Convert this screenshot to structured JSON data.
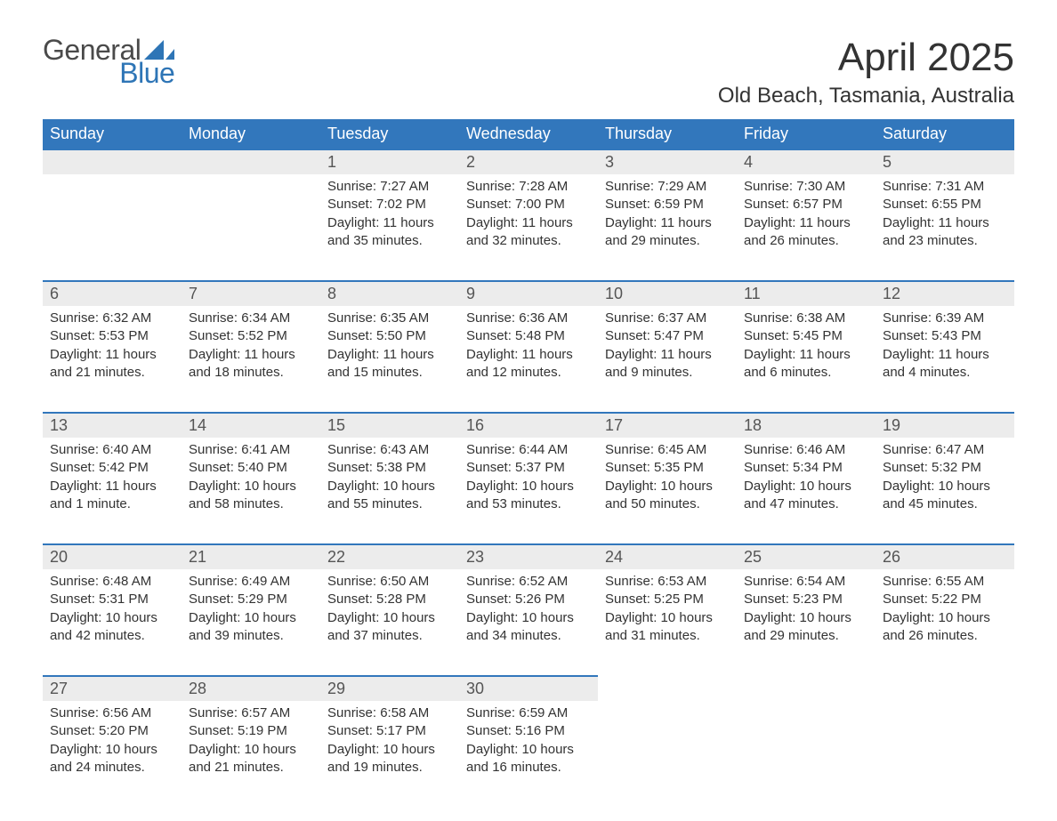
{
  "logo": {
    "word1": "General",
    "word2": "Blue",
    "sail_color": "#2e75b6",
    "text1_color": "#4a4a4a",
    "text2_color": "#2e75b6"
  },
  "title": "April 2025",
  "location": "Old Beach, Tasmania, Australia",
  "colors": {
    "header_bg": "#3277bc",
    "header_text": "#ffffff",
    "daynum_bg": "#ececec",
    "row_border": "#3277bc",
    "body_text": "#333333",
    "page_bg": "#ffffff"
  },
  "fonts": {
    "title_size": 44,
    "location_size": 24,
    "dayheader_size": 18,
    "daynum_size": 18,
    "body_size": 15
  },
  "day_headers": [
    "Sunday",
    "Monday",
    "Tuesday",
    "Wednesday",
    "Thursday",
    "Friday",
    "Saturday"
  ],
  "weeks": [
    [
      null,
      null,
      {
        "n": "1",
        "sunrise": "7:27 AM",
        "sunset": "7:02 PM",
        "daylight": "11 hours and 35 minutes."
      },
      {
        "n": "2",
        "sunrise": "7:28 AM",
        "sunset": "7:00 PM",
        "daylight": "11 hours and 32 minutes."
      },
      {
        "n": "3",
        "sunrise": "7:29 AM",
        "sunset": "6:59 PM",
        "daylight": "11 hours and 29 minutes."
      },
      {
        "n": "4",
        "sunrise": "7:30 AM",
        "sunset": "6:57 PM",
        "daylight": "11 hours and 26 minutes."
      },
      {
        "n": "5",
        "sunrise": "7:31 AM",
        "sunset": "6:55 PM",
        "daylight": "11 hours and 23 minutes."
      }
    ],
    [
      {
        "n": "6",
        "sunrise": "6:32 AM",
        "sunset": "5:53 PM",
        "daylight": "11 hours and 21 minutes."
      },
      {
        "n": "7",
        "sunrise": "6:34 AM",
        "sunset": "5:52 PM",
        "daylight": "11 hours and 18 minutes."
      },
      {
        "n": "8",
        "sunrise": "6:35 AM",
        "sunset": "5:50 PM",
        "daylight": "11 hours and 15 minutes."
      },
      {
        "n": "9",
        "sunrise": "6:36 AM",
        "sunset": "5:48 PM",
        "daylight": "11 hours and 12 minutes."
      },
      {
        "n": "10",
        "sunrise": "6:37 AM",
        "sunset": "5:47 PM",
        "daylight": "11 hours and 9 minutes."
      },
      {
        "n": "11",
        "sunrise": "6:38 AM",
        "sunset": "5:45 PM",
        "daylight": "11 hours and 6 minutes."
      },
      {
        "n": "12",
        "sunrise": "6:39 AM",
        "sunset": "5:43 PM",
        "daylight": "11 hours and 4 minutes."
      }
    ],
    [
      {
        "n": "13",
        "sunrise": "6:40 AM",
        "sunset": "5:42 PM",
        "daylight": "11 hours and 1 minute."
      },
      {
        "n": "14",
        "sunrise": "6:41 AM",
        "sunset": "5:40 PM",
        "daylight": "10 hours and 58 minutes."
      },
      {
        "n": "15",
        "sunrise": "6:43 AM",
        "sunset": "5:38 PM",
        "daylight": "10 hours and 55 minutes."
      },
      {
        "n": "16",
        "sunrise": "6:44 AM",
        "sunset": "5:37 PM",
        "daylight": "10 hours and 53 minutes."
      },
      {
        "n": "17",
        "sunrise": "6:45 AM",
        "sunset": "5:35 PM",
        "daylight": "10 hours and 50 minutes."
      },
      {
        "n": "18",
        "sunrise": "6:46 AM",
        "sunset": "5:34 PM",
        "daylight": "10 hours and 47 minutes."
      },
      {
        "n": "19",
        "sunrise": "6:47 AM",
        "sunset": "5:32 PM",
        "daylight": "10 hours and 45 minutes."
      }
    ],
    [
      {
        "n": "20",
        "sunrise": "6:48 AM",
        "sunset": "5:31 PM",
        "daylight": "10 hours and 42 minutes."
      },
      {
        "n": "21",
        "sunrise": "6:49 AM",
        "sunset": "5:29 PM",
        "daylight": "10 hours and 39 minutes."
      },
      {
        "n": "22",
        "sunrise": "6:50 AM",
        "sunset": "5:28 PM",
        "daylight": "10 hours and 37 minutes."
      },
      {
        "n": "23",
        "sunrise": "6:52 AM",
        "sunset": "5:26 PM",
        "daylight": "10 hours and 34 minutes."
      },
      {
        "n": "24",
        "sunrise": "6:53 AM",
        "sunset": "5:25 PM",
        "daylight": "10 hours and 31 minutes."
      },
      {
        "n": "25",
        "sunrise": "6:54 AM",
        "sunset": "5:23 PM",
        "daylight": "10 hours and 29 minutes."
      },
      {
        "n": "26",
        "sunrise": "6:55 AM",
        "sunset": "5:22 PM",
        "daylight": "10 hours and 26 minutes."
      }
    ],
    [
      {
        "n": "27",
        "sunrise": "6:56 AM",
        "sunset": "5:20 PM",
        "daylight": "10 hours and 24 minutes."
      },
      {
        "n": "28",
        "sunrise": "6:57 AM",
        "sunset": "5:19 PM",
        "daylight": "10 hours and 21 minutes."
      },
      {
        "n": "29",
        "sunrise": "6:58 AM",
        "sunset": "5:17 PM",
        "daylight": "10 hours and 19 minutes."
      },
      {
        "n": "30",
        "sunrise": "6:59 AM",
        "sunset": "5:16 PM",
        "daylight": "10 hours and 16 minutes."
      },
      null,
      null,
      null
    ]
  ],
  "labels": {
    "sunrise": "Sunrise: ",
    "sunset": "Sunset: ",
    "daylight": "Daylight: "
  }
}
